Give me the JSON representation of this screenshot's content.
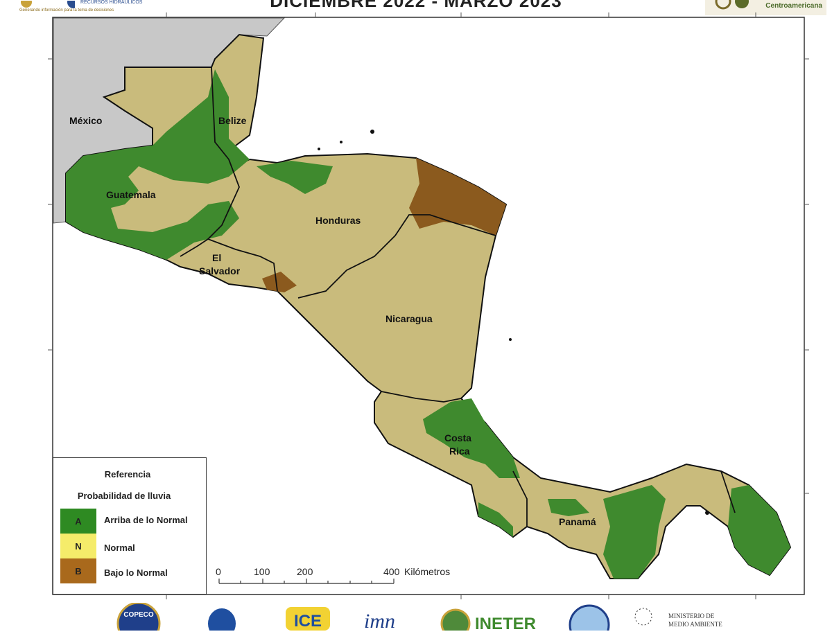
{
  "header": {
    "title": "DICIEMBRE 2022 - MARZO 2023",
    "logo_left_text": "RECURSOS HIDRÁULICOS",
    "logo_left_tagline": "Generando información para la toma de decisiones",
    "logo_right_text": "Centroamericana"
  },
  "map": {
    "countries": [
      {
        "name": "México",
        "region": "outside"
      },
      {
        "name": "Belize"
      },
      {
        "name": "Guatemala"
      },
      {
        "name": "Honduras"
      },
      {
        "name": "El Salvador",
        "line1": "El",
        "line2": "Salvador"
      },
      {
        "name": "Nicaragua"
      },
      {
        "name": "Costa Rica",
        "line1": "Costa",
        "line2": "Rica"
      },
      {
        "name": "Panamá"
      }
    ],
    "colors": {
      "above_normal": "#3f8a2e",
      "normal": "#c9bb7c",
      "below_normal": "#8b5a1e",
      "outside": "#c8c8c8",
      "water": "#ffffff"
    }
  },
  "legend": {
    "title": "Referencia",
    "subtitle": "Probabilidad de lluvia",
    "items": [
      {
        "code": "A",
        "label": "Arriba de lo Normal",
        "color": "#2e8a22"
      },
      {
        "code": "N",
        "label": "Normal",
        "color": "#f5ec6a"
      },
      {
        "code": "B",
        "label": "Bajo lo Normal",
        "color": "#a9691c"
      }
    ]
  },
  "scale_bar": {
    "ticks": [
      "0",
      "100",
      "200",
      "400"
    ],
    "unit": "Kilómetros"
  },
  "footer_logos": [
    "COPECO",
    "",
    "ICE",
    "IMN",
    "INETER",
    "",
    "MINISTERIO DE MEDIO AMBIENTE"
  ]
}
